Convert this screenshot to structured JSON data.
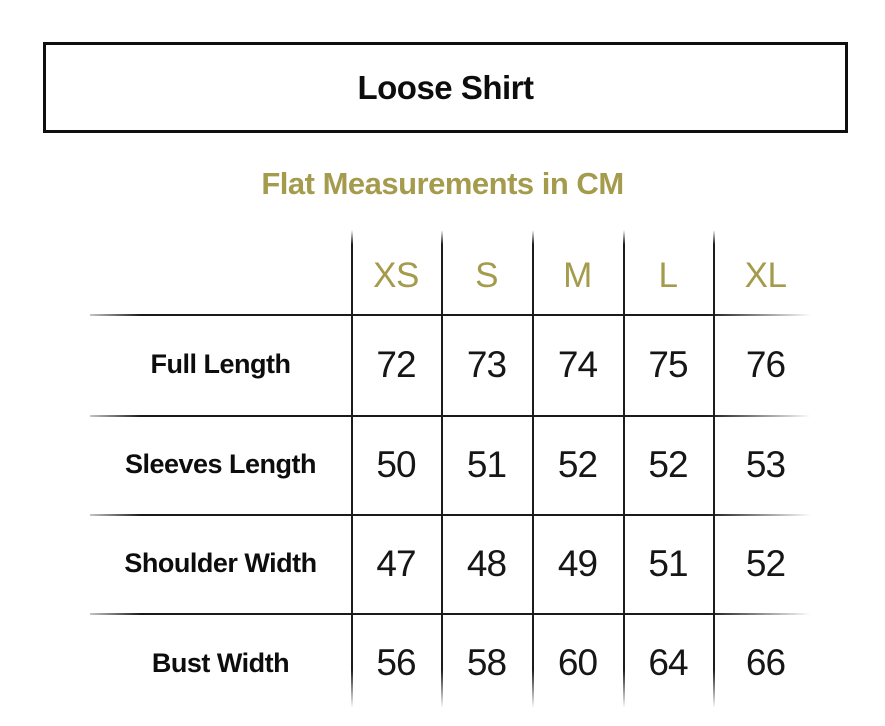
{
  "title": "Loose Shirt",
  "subtitle": "Flat Measurements in CM",
  "colors": {
    "accent_olive": "#a49b4d",
    "text_black": "#0d0d0d",
    "line_color": "#1c1c1c",
    "background": "#ffffff"
  },
  "table": {
    "sizes": [
      "XS",
      "S",
      "M",
      "L",
      "XL"
    ],
    "rows": [
      {
        "label": "Full Length",
        "values": [
          "72",
          "73",
          "74",
          "75",
          "76"
        ]
      },
      {
        "label": "Sleeves Length",
        "values": [
          "50",
          "51",
          "52",
          "52",
          "53"
        ]
      },
      {
        "label": "Shoulder Width",
        "values": [
          "47",
          "48",
          "49",
          "51",
          "52"
        ]
      },
      {
        "label": "Bust Width",
        "values": [
          "56",
          "58",
          "60",
          "64",
          "66"
        ]
      }
    ]
  },
  "chart_data": {
    "type": "table",
    "title": "Loose Shirt",
    "subtitle": "Flat Measurements in CM",
    "unit": "cm",
    "columns": [
      "XS",
      "S",
      "M",
      "L",
      "XL"
    ],
    "rows": [
      {
        "label": "Full Length",
        "values": [
          72,
          73,
          74,
          75,
          76
        ]
      },
      {
        "label": "Sleeves Length",
        "values": [
          50,
          51,
          52,
          52,
          53
        ]
      },
      {
        "label": "Shoulder Width",
        "values": [
          47,
          48,
          49,
          51,
          52
        ]
      },
      {
        "label": "Bust Width",
        "values": [
          56,
          58,
          60,
          64,
          66
        ]
      }
    ]
  }
}
